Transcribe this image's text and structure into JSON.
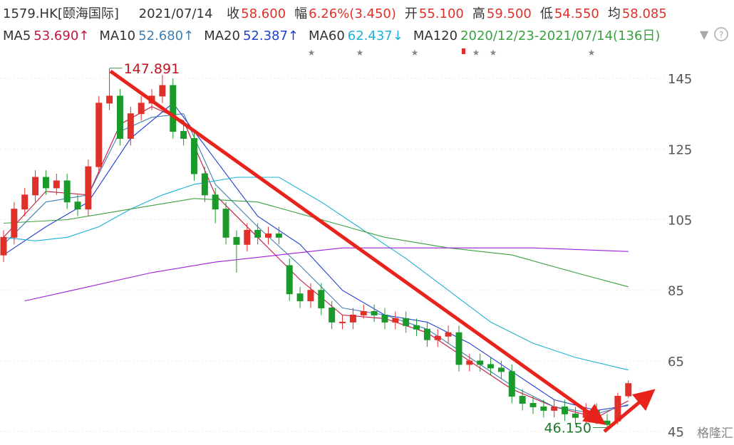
{
  "header": {
    "symbol": "1579.HK[颐海国际]",
    "date": "2021/07/14",
    "items": [
      {
        "label": "收",
        "value": "58.600"
      },
      {
        "label": "幅",
        "value": "6.26%(3.450)"
      },
      {
        "label": "开",
        "value": "55.100"
      },
      {
        "label": "高",
        "value": "59.500"
      },
      {
        "label": "低",
        "value": "54.550"
      },
      {
        "label": "均",
        "value": "58.085"
      }
    ]
  },
  "ma_legend": [
    {
      "name": "MA5",
      "value": "53.690↑",
      "color": "#c2183f"
    },
    {
      "name": "MA10",
      "value": "52.680↑",
      "color": "#3f7fb0"
    },
    {
      "name": "MA20",
      "value": "52.387↑",
      "color": "#1f3fd0"
    },
    {
      "name": "MA60",
      "value": "62.437↓",
      "color": "#1eb0d8"
    },
    {
      "name": "MA120",
      "value": "2020/12/23-2021/07/14(136日)",
      "color": "#3aa040"
    }
  ],
  "watermark": "格隆汇",
  "chart_data": {
    "type": "candlestick",
    "ylim": [
      41.2,
      154.7
    ],
    "yticks": [
      45,
      65,
      85,
      105,
      125,
      145
    ],
    "grid": true,
    "up_color": "#e0302a",
    "down_color": "#1a9a2a",
    "max_label": "147.891",
    "min_label": "46.150",
    "open": [
      95,
      100,
      108,
      112,
      117,
      114,
      116,
      110,
      108,
      120,
      138,
      140,
      128,
      135,
      138,
      140,
      143,
      130,
      128,
      118,
      112,
      108,
      100,
      98,
      102,
      100,
      101,
      92,
      84,
      82,
      85,
      80,
      76,
      76,
      78,
      79,
      78,
      76,
      77,
      75,
      74,
      71,
      72,
      73,
      64,
      65,
      64,
      63,
      62,
      55,
      53,
      52,
      51,
      52,
      50,
      49,
      51,
      48,
      48,
      55.1
    ],
    "high": [
      102,
      110,
      114,
      119,
      119,
      118,
      118,
      112,
      122,
      140,
      147.891,
      142,
      137,
      140,
      142,
      146,
      145,
      132,
      130,
      120,
      114,
      110,
      102,
      104,
      104,
      103,
      103,
      94,
      86,
      87,
      87,
      82,
      78,
      80,
      81,
      81,
      80,
      79,
      79,
      77,
      76,
      74,
      75,
      75,
      67,
      67,
      66,
      65,
      64,
      57,
      55,
      54,
      54,
      54,
      52,
      53,
      53,
      50,
      56,
      59.5
    ],
    "low": [
      93,
      98,
      106,
      110,
      112,
      112,
      108,
      106,
      106,
      118,
      136,
      126,
      126,
      133,
      136,
      138,
      128,
      126,
      116,
      110,
      104,
      98,
      90,
      96,
      98,
      98,
      98,
      82,
      80,
      80,
      78,
      74,
      74,
      74,
      77,
      76,
      74,
      74,
      73,
      72,
      69,
      69,
      70,
      62,
      62,
      62,
      61,
      60,
      53,
      51,
      50,
      49,
      49,
      48,
      47,
      47,
      47,
      46.15,
      47,
      54.55
    ],
    "close": [
      100,
      108,
      112,
      117,
      114,
      116,
      110,
      108,
      120,
      138,
      140,
      128,
      135,
      138,
      140,
      143,
      130,
      128,
      118,
      112,
      108,
      100,
      98,
      102,
      100,
      101,
      100,
      84,
      82,
      85,
      80,
      76,
      76,
      78,
      79,
      78,
      76,
      77,
      75,
      74,
      71,
      72,
      73,
      64,
      65,
      64,
      63,
      62,
      55,
      53,
      52,
      51,
      52,
      50,
      49,
      51,
      48,
      47,
      55,
      58.6
    ],
    "series": [
      {
        "color": "#c2183f",
        "x": [
          0,
          4,
          8,
          11,
          14,
          17,
          20,
          24,
          28,
          32,
          36,
          40,
          44,
          48,
          52,
          56,
          59
        ],
        "values": [
          100,
          113,
          112,
          132,
          137,
          133,
          112,
          100,
          88,
          78,
          77,
          73,
          65,
          57,
          52,
          49,
          53.69
        ]
      },
      {
        "color": "#3f7fb0",
        "x": [
          0,
          4,
          8,
          11,
          14,
          17,
          20,
          24,
          28,
          32,
          36,
          40,
          44,
          48,
          52,
          56,
          59
        ],
        "values": [
          98,
          110,
          112,
          130,
          134,
          135,
          115,
          103,
          92,
          80,
          78,
          74,
          66,
          58,
          52,
          50,
          52.68
        ]
      },
      {
        "color": "#1f3fd0",
        "x": [
          0,
          4,
          8,
          12,
          16,
          20,
          24,
          28,
          32,
          36,
          40,
          44,
          48,
          52,
          56,
          59
        ],
        "values": [
          95,
          103,
          110,
          128,
          138,
          122,
          106,
          98,
          85,
          78,
          76,
          70,
          62,
          54,
          51,
          52.387
        ]
      },
      {
        "color": "#1eb0d8",
        "x": [
          0,
          3,
          6,
          9,
          12,
          15,
          18,
          22,
          26,
          30,
          34,
          38,
          42,
          46,
          50,
          54,
          59
        ],
        "values": [
          100,
          99,
          100,
          103,
          108,
          112,
          115,
          117,
          117,
          110,
          102,
          94,
          85,
          76,
          70,
          66,
          62.437
        ]
      },
      {
        "color": "#3aa040",
        "x": [
          0,
          6,
          12,
          18,
          24,
          30,
          36,
          42,
          48,
          54,
          59
        ],
        "values": [
          104,
          105,
          108,
          111,
          110,
          105,
          100,
          97,
          95,
          90,
          86
        ]
      },
      {
        "color": "#9b1dd8",
        "x": [
          2,
          8,
          14,
          20,
          26,
          32,
          38,
          44,
          50,
          59
        ],
        "values": [
          82,
          86,
          90,
          93,
          95,
          97,
          97,
          97,
          97,
          96
        ]
      }
    ]
  }
}
